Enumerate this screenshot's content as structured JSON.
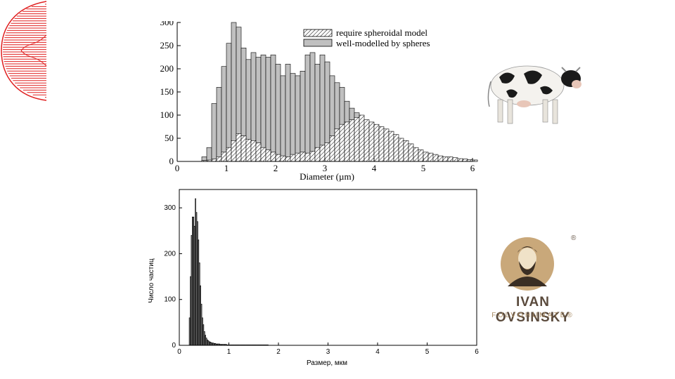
{
  "chart_data": [
    {
      "type": "bar",
      "title": "",
      "xlabel": "Diameter (µm)",
      "ylabel": "",
      "xlim": [
        0,
        6
      ],
      "ylim": [
        0,
        300
      ],
      "xticks": [
        "0",
        "1",
        "2",
        "3",
        "4",
        "5",
        "6"
      ],
      "yticks": [
        "0",
        "50",
        "100",
        "150",
        "200",
        "250",
        "300"
      ],
      "legend_position": "top-right",
      "bin_width": 0.1,
      "bin_start": 0.5,
      "series": [
        {
          "name": "require spheroidal model",
          "fill": "hatched",
          "values": [
            2,
            3,
            5,
            10,
            20,
            30,
            45,
            60,
            55,
            48,
            45,
            40,
            30,
            25,
            20,
            15,
            12,
            10,
            15,
            18,
            20,
            18,
            22,
            30,
            35,
            40,
            55,
            70,
            80,
            85,
            90,
            95,
            100,
            90,
            85,
            80,
            75,
            70,
            65,
            58,
            50,
            45,
            38,
            30,
            25,
            20,
            18,
            15,
            12,
            10,
            10,
            8,
            6,
            5,
            4,
            3
          ]
        },
        {
          "name": "well-modelled by spheres",
          "fill": "#c0c0c0",
          "values": [
            10,
            30,
            125,
            160,
            205,
            255,
            300,
            290,
            245,
            220,
            235,
            225,
            230,
            225,
            230,
            210,
            185,
            210,
            190,
            185,
            195,
            230,
            235,
            210,
            230,
            215,
            185,
            170,
            160,
            130,
            115,
            105,
            90,
            85,
            75,
            70,
            60,
            50,
            45,
            40,
            35,
            30,
            25,
            20,
            18,
            15,
            12,
            12,
            10,
            8,
            8,
            6,
            5,
            5,
            4,
            3
          ]
        }
      ]
    },
    {
      "type": "bar",
      "title": "",
      "xlabel": "Размер, мкм",
      "ylabel": "Число частиц",
      "xlim": [
        0,
        6
      ],
      "ylim": [
        0,
        340
      ],
      "xticks": [
        "0",
        "1",
        "2",
        "3",
        "4",
        "5",
        "6"
      ],
      "yticks": [
        "0",
        "100",
        "200",
        "300"
      ],
      "bin_width": 0.02,
      "bin_start": 0.2,
      "values": [
        60,
        150,
        240,
        280,
        280,
        260,
        320,
        290,
        270,
        230,
        180,
        130,
        90,
        60,
        45,
        30,
        22,
        16,
        12,
        10,
        8,
        7,
        6,
        5,
        5,
        4,
        4,
        3,
        3,
        3,
        3,
        2,
        2,
        2,
        2,
        2,
        2,
        2,
        1,
        1,
        1,
        1,
        1,
        1,
        1,
        1,
        1,
        1,
        1,
        1,
        1,
        1,
        1,
        1,
        1,
        1,
        1,
        1,
        1,
        1,
        1,
        1,
        1,
        1,
        1,
        1,
        1,
        1,
        1,
        1,
        1,
        1,
        1,
        1,
        1,
        1,
        1,
        1,
        1,
        1
      ]
    }
  ],
  "brand": {
    "name": "IVAN OVSINSKY",
    "subtitle": "FULVOHUMATE®",
    "registered": "®"
  },
  "colors": {
    "logo_brown": "#5a4a3c",
    "logo_gold": "#a88c66",
    "logo_circle": "#c9a87a",
    "sphere_gray": "#c0c0c0",
    "red_accent": "#e02020"
  }
}
